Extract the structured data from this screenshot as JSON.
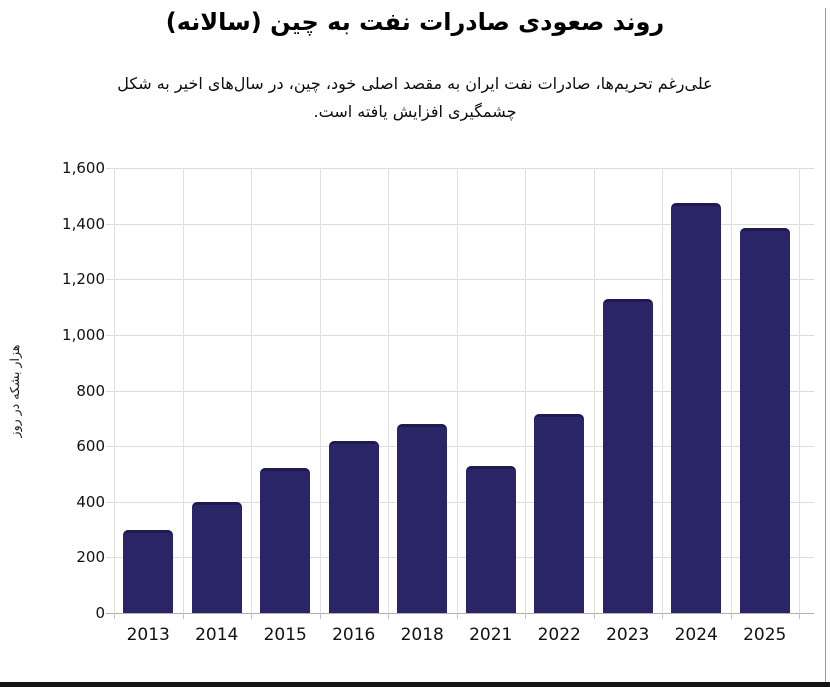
{
  "header": {
    "title": "روند صعودی صادرات نفت به چین (سالانه)",
    "subtitle_lines": [
      "علی‌رغم تحریم‌ها، صادرات نفت ایران به مقصد اصلی خود، چین، در سال‌های اخیر به شکل",
      "چشمگیری افزایش یافته است."
    ]
  },
  "chart_data": {
    "type": "bar",
    "title": "روند صعودی صادرات نفت به چین (سالانه)",
    "subtitle": "علی‌رغم تحریم‌ها، صادرات نفت ایران به مقصد اصلی خود، چین، در سال‌های اخیر به شکل چشمگیری افزایش یافته است.",
    "ylabel": "هزار بشکه در روز",
    "xlabel": "",
    "categories": [
      "2013",
      "2014",
      "2015",
      "2016",
      "2018",
      "2021",
      "2022",
      "2023",
      "2024",
      "2025"
    ],
    "values": [
      300,
      400,
      520,
      620,
      680,
      530,
      715,
      1130,
      1475,
      1385
    ],
    "ylim": [
      0,
      1600
    ],
    "yticks": [
      0,
      200,
      400,
      600,
      800,
      1000,
      1200,
      1400,
      1600
    ],
    "ytick_labels": [
      "0",
      "200",
      "400",
      "600",
      "800",
      "1,000",
      "1,200",
      "1,400",
      "1,600"
    ],
    "grid": "on",
    "legend": "none",
    "bar_color": "#2a2566",
    "bar_top_edge_color": "#1f1b50",
    "gridline_color": "#dcdcdc",
    "axis_line_color": "#b0b0b0",
    "background_color": "#ffffff"
  }
}
